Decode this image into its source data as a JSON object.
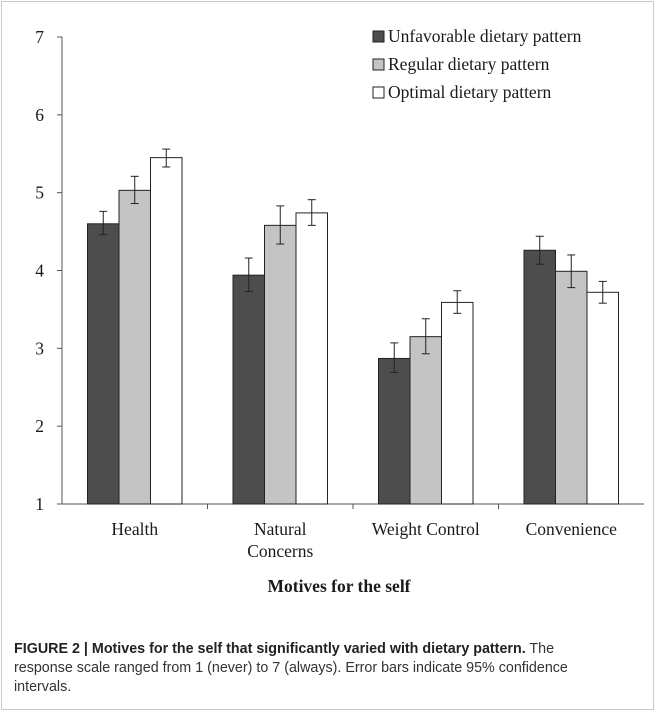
{
  "chart_data": {
    "type": "bar",
    "categories": [
      "Health",
      "Natural\nConcerns",
      "Weight Control",
      "Convenience"
    ],
    "series": [
      {
        "name": "Unfavorable dietary pattern",
        "color": "#4d4d4d",
        "values": [
          4.6,
          3.94,
          2.87,
          4.26
        ],
        "ci_low": [
          4.46,
          3.73,
          2.69,
          4.08
        ],
        "ci_high": [
          4.76,
          4.16,
          3.07,
          4.44
        ]
      },
      {
        "name": "Regular dietary pattern",
        "color": "#c4c4c4",
        "values": [
          5.03,
          4.58,
          3.15,
          3.99
        ],
        "ci_low": [
          4.86,
          4.34,
          2.93,
          3.78
        ],
        "ci_high": [
          5.21,
          4.83,
          3.38,
          4.2
        ]
      },
      {
        "name": "Optimal dietary pattern",
        "color": "#ffffff",
        "values": [
          5.45,
          4.74,
          3.59,
          3.72
        ],
        "ci_low": [
          5.33,
          4.58,
          3.45,
          3.58
        ],
        "ci_high": [
          5.56,
          4.91,
          3.74,
          3.86
        ]
      }
    ],
    "yticks": [
      "1",
      "2",
      "3",
      "4",
      "5",
      "6",
      "7"
    ],
    "ylim": [
      1,
      7
    ],
    "xlabel": "Motives for the self",
    "ylabel": "",
    "title": "",
    "legend": "top-right",
    "grid": false
  },
  "caption": {
    "label": "FIGURE 2 |",
    "title": "Motives for the self that significantly varied with dietary pattern.",
    "text": "The response scale ranged from 1 (never) to 7 (always). Error bars indicate 95% confidence intervals."
  }
}
